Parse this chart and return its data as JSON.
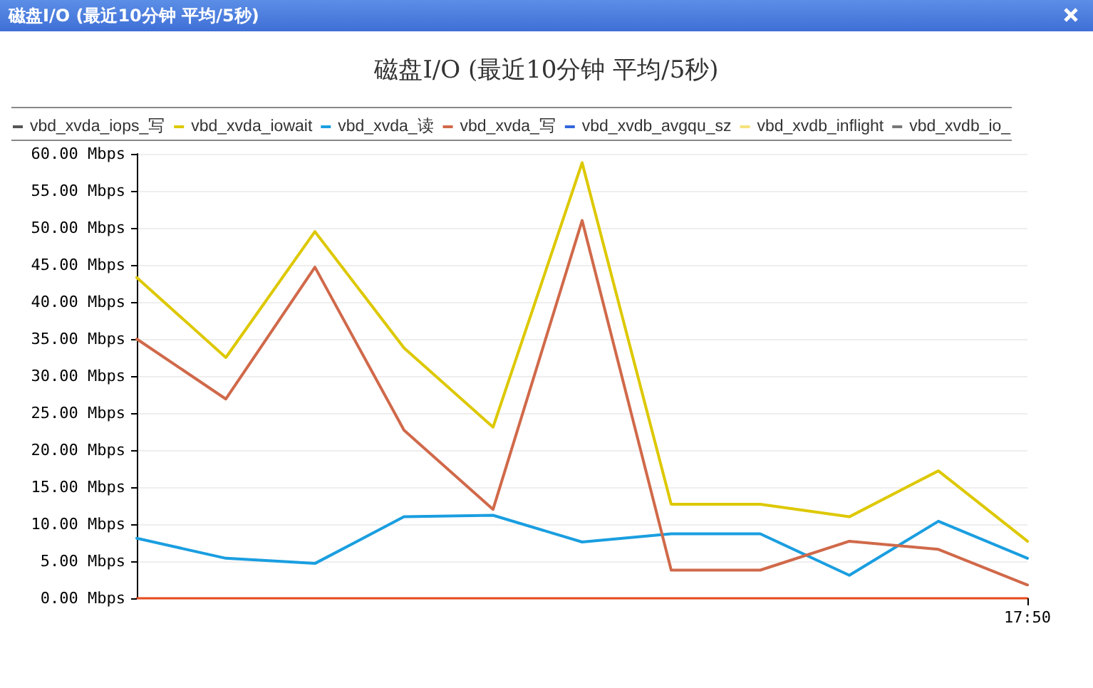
{
  "chart_data": {
    "type": "line",
    "title": "磁盘I/O (最近10分钟 平均/5秒)",
    "annotations": [
      "磁盘I/O (最近10分钟 平均/5秒)"
    ],
    "categories": [
      null,
      null,
      null,
      null,
      null,
      null,
      null,
      null,
      null,
      null,
      "17:50"
    ],
    "series": [
      {
        "name": "vbd_xvda_iops_写",
        "color": "#555555",
        "values": [
          null,
          null,
          null,
          null,
          null,
          null,
          null,
          null,
          null,
          null,
          null
        ]
      },
      {
        "name": "vbd_xvda_iowait",
        "color": "#ddc800",
        "values": [
          43.3,
          32.5,
          49.5,
          33.8,
          23.1,
          58.8,
          12.7,
          12.7,
          11.0,
          17.2,
          7.7
        ]
      },
      {
        "name": "vbd_xvda_读",
        "color": "#1a9ee0",
        "values": [
          8.1,
          5.4,
          4.7,
          11.0,
          11.2,
          7.6,
          8.7,
          8.7,
          3.1,
          10.4,
          5.4
        ]
      },
      {
        "name": "vbd_xvda_写",
        "color": "#d0694a",
        "values": [
          35.0,
          26.9,
          44.7,
          22.7,
          12.0,
          51.0,
          3.8,
          3.8,
          7.7,
          6.6,
          1.8
        ]
      },
      {
        "name": "vbd_xvdb_avgqu_sz",
        "color": "#3366dd",
        "values": [
          null,
          null,
          null,
          null,
          null,
          null,
          null,
          null,
          null,
          null,
          null
        ]
      },
      {
        "name": "vbd_xvdb_inflight",
        "color": "#f5e27a",
        "values": [
          null,
          null,
          null,
          null,
          null,
          null,
          null,
          null,
          null,
          null,
          null
        ]
      },
      {
        "name": "vbd_xvdb_io_",
        "color": "#777777",
        "values": [
          null,
          null,
          null,
          null,
          null,
          null,
          null,
          null,
          null,
          null,
          null
        ]
      }
    ],
    "ylim": [
      0,
      60
    ],
    "yticks": [
      {
        "value": 0,
        "label": "0.00 Mbps"
      },
      {
        "value": 5,
        "label": "5.00 Mbps"
      },
      {
        "value": 10,
        "label": "10.00 Mbps"
      },
      {
        "value": 15,
        "label": "15.00 Mbps"
      },
      {
        "value": 20,
        "label": "20.00 Mbps"
      },
      {
        "value": 25,
        "label": "25.00 Mbps"
      },
      {
        "value": 30,
        "label": "30.00 Mbps"
      },
      {
        "value": 35,
        "label": "35.00 Mbps"
      },
      {
        "value": 40,
        "label": "40.00 Mbps"
      },
      {
        "value": 45,
        "label": "45.00 Mbps"
      },
      {
        "value": 50,
        "label": "50.00 Mbps"
      },
      {
        "value": 55,
        "label": "55.00 Mbps"
      },
      {
        "value": 60,
        "label": "60.00 Mbps"
      }
    ],
    "grid": "y",
    "legend": "top",
    "marker": "none",
    "line_style": "solid"
  }
}
